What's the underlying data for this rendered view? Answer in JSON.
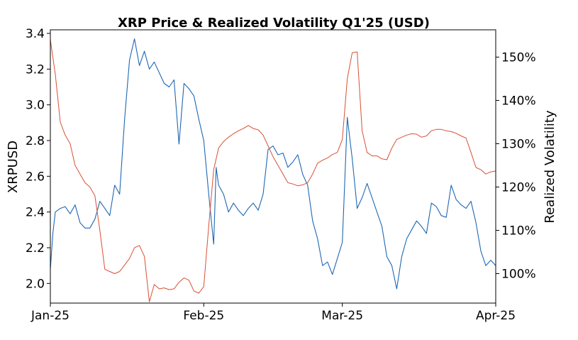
{
  "chart_data": {
    "type": "line",
    "title": "XRP Price & Realized Volatility Q1'25 (USD)",
    "xlabel": "",
    "ylabel": "XRPUSD",
    "y2label": "Realized Volatility",
    "x_ticks": [
      "Jan-25",
      "Feb-25",
      "Mar-25",
      "Apr-25"
    ],
    "x_range": [
      "2025-01-01",
      "2025-04-01"
    ],
    "ylim": [
      1.89,
      3.42
    ],
    "y_ticks": [
      "2.0",
      "2.2",
      "2.4",
      "2.6",
      "2.8",
      "3.0",
      "3.2",
      "3.4"
    ],
    "y2lim": [
      93.2,
      156.3
    ],
    "y2_ticks": [
      "100%",
      "110%",
      "120%",
      "130%",
      "140%",
      "150%"
    ],
    "grid": false,
    "series": [
      {
        "axis": "left",
        "color": "#1f67b4",
        "points": [
          [
            "2025-01-01",
            2.08
          ],
          [
            "2025-01-01T12",
            2.28
          ],
          [
            "2025-01-02",
            2.4
          ],
          [
            "2025-01-03",
            2.42
          ],
          [
            "2025-01-04",
            2.43
          ],
          [
            "2025-01-05",
            2.39
          ],
          [
            "2025-01-06",
            2.44
          ],
          [
            "2025-01-07",
            2.34
          ],
          [
            "2025-01-08",
            2.31
          ],
          [
            "2025-01-09",
            2.31
          ],
          [
            "2025-01-10",
            2.36
          ],
          [
            "2025-01-11",
            2.46
          ],
          [
            "2025-01-12",
            2.42
          ],
          [
            "2025-01-13",
            2.38
          ],
          [
            "2025-01-14",
            2.55
          ],
          [
            "2025-01-15",
            2.5
          ],
          [
            "2025-01-16",
            2.92
          ],
          [
            "2025-01-17",
            3.25
          ],
          [
            "2025-01-18",
            3.37
          ],
          [
            "2025-01-19",
            3.22
          ],
          [
            "2025-01-20",
            3.3
          ],
          [
            "2025-01-21",
            3.2
          ],
          [
            "2025-01-22",
            3.24
          ],
          [
            "2025-01-23",
            3.18
          ],
          [
            "2025-01-24",
            3.12
          ],
          [
            "2025-01-25",
            3.1
          ],
          [
            "2025-01-26",
            3.14
          ],
          [
            "2025-01-27",
            2.78
          ],
          [
            "2025-01-28",
            3.12
          ],
          [
            "2025-01-29",
            3.09
          ],
          [
            "2025-01-30",
            3.05
          ],
          [
            "2025-01-31",
            2.92
          ],
          [
            "2025-02-01",
            2.8
          ],
          [
            "2025-02-02",
            2.5
          ],
          [
            "2025-02-03",
            2.22
          ],
          [
            "2025-02-03T12",
            2.65
          ],
          [
            "2025-02-04",
            2.55
          ],
          [
            "2025-02-05",
            2.5
          ],
          [
            "2025-02-06",
            2.4
          ],
          [
            "2025-02-07",
            2.45
          ],
          [
            "2025-02-08",
            2.41
          ],
          [
            "2025-02-09",
            2.38
          ],
          [
            "2025-02-10",
            2.42
          ],
          [
            "2025-02-11",
            2.45
          ],
          [
            "2025-02-12",
            2.41
          ],
          [
            "2025-02-13",
            2.5
          ],
          [
            "2025-02-14",
            2.75
          ],
          [
            "2025-02-15",
            2.77
          ],
          [
            "2025-02-16",
            2.72
          ],
          [
            "2025-02-17",
            2.73
          ],
          [
            "2025-02-18",
            2.65
          ],
          [
            "2025-02-19",
            2.68
          ],
          [
            "2025-02-20",
            2.72
          ],
          [
            "2025-02-21",
            2.61
          ],
          [
            "2025-02-22",
            2.55
          ],
          [
            "2025-02-23",
            2.35
          ],
          [
            "2025-02-24",
            2.25
          ],
          [
            "2025-02-25",
            2.1
          ],
          [
            "2025-02-26",
            2.12
          ],
          [
            "2025-02-27",
            2.05
          ],
          [
            "2025-02-28",
            2.14
          ],
          [
            "2025-03-01",
            2.23
          ],
          [
            "2025-03-02",
            2.93
          ],
          [
            "2025-03-03",
            2.7
          ],
          [
            "2025-03-04",
            2.42
          ],
          [
            "2025-03-05",
            2.48
          ],
          [
            "2025-03-06",
            2.56
          ],
          [
            "2025-03-07",
            2.48
          ],
          [
            "2025-03-08",
            2.4
          ],
          [
            "2025-03-09",
            2.32
          ],
          [
            "2025-03-10",
            2.15
          ],
          [
            "2025-03-11",
            2.1
          ],
          [
            "2025-03-12",
            1.97
          ],
          [
            "2025-03-13",
            2.15
          ],
          [
            "2025-03-14",
            2.25
          ],
          [
            "2025-03-15",
            2.3
          ],
          [
            "2025-03-16",
            2.35
          ],
          [
            "2025-03-17",
            2.32
          ],
          [
            "2025-03-18",
            2.28
          ],
          [
            "2025-03-19",
            2.45
          ],
          [
            "2025-03-20",
            2.43
          ],
          [
            "2025-03-21",
            2.38
          ],
          [
            "2025-03-22",
            2.37
          ],
          [
            "2025-03-23",
            2.55
          ],
          [
            "2025-03-24",
            2.47
          ],
          [
            "2025-03-25",
            2.44
          ],
          [
            "2025-03-26",
            2.42
          ],
          [
            "2025-03-27",
            2.46
          ],
          [
            "2025-03-28",
            2.34
          ],
          [
            "2025-03-29",
            2.18
          ],
          [
            "2025-03-30",
            2.1
          ],
          [
            "2025-03-31",
            2.13
          ],
          [
            "2025-04-01",
            2.1
          ]
        ]
      },
      {
        "axis": "right",
        "color": "#d94f33",
        "points": [
          [
            "2025-01-01",
            154.0
          ],
          [
            "2025-01-02",
            146.0
          ],
          [
            "2025-01-03",
            135.0
          ],
          [
            "2025-01-04",
            132.0
          ],
          [
            "2025-01-05",
            130.0
          ],
          [
            "2025-01-06",
            125.0
          ],
          [
            "2025-01-07",
            123.0
          ],
          [
            "2025-01-08",
            121.0
          ],
          [
            "2025-01-09",
            120.0
          ],
          [
            "2025-01-10",
            118.0
          ],
          [
            "2025-01-11",
            110.0
          ],
          [
            "2025-01-12",
            101.0
          ],
          [
            "2025-01-13",
            100.5
          ],
          [
            "2025-01-14",
            100.0
          ],
          [
            "2025-01-15",
            100.5
          ],
          [
            "2025-01-16",
            102.0
          ],
          [
            "2025-01-17",
            103.5
          ],
          [
            "2025-01-18",
            106.0
          ],
          [
            "2025-01-19",
            106.5
          ],
          [
            "2025-01-20",
            104.0
          ],
          [
            "2025-01-21",
            93.5
          ],
          [
            "2025-01-22",
            97.5
          ],
          [
            "2025-01-23",
            96.5
          ],
          [
            "2025-01-24",
            96.7
          ],
          [
            "2025-01-25",
            96.3
          ],
          [
            "2025-01-26",
            96.5
          ],
          [
            "2025-01-27",
            98.0
          ],
          [
            "2025-01-28",
            99.0
          ],
          [
            "2025-01-29",
            98.5
          ],
          [
            "2025-01-30",
            96.0
          ],
          [
            "2025-01-31",
            95.5
          ],
          [
            "2025-02-01",
            97.0
          ],
          [
            "2025-02-02",
            111.0
          ],
          [
            "2025-02-03",
            124.0
          ],
          [
            "2025-02-04",
            129.0
          ],
          [
            "2025-02-05",
            130.5
          ],
          [
            "2025-02-06",
            131.5
          ],
          [
            "2025-02-07",
            132.3
          ],
          [
            "2025-02-08",
            133.0
          ],
          [
            "2025-02-09",
            133.5
          ],
          [
            "2025-02-10",
            134.2
          ],
          [
            "2025-02-11",
            133.5
          ],
          [
            "2025-02-12",
            133.2
          ],
          [
            "2025-02-13",
            132.0
          ],
          [
            "2025-02-14",
            129.5
          ],
          [
            "2025-02-15",
            127.0
          ],
          [
            "2025-02-16",
            125.0
          ],
          [
            "2025-02-17",
            123.0
          ],
          [
            "2025-02-18",
            121.0
          ],
          [
            "2025-02-19",
            120.7
          ],
          [
            "2025-02-20",
            120.3
          ],
          [
            "2025-02-21",
            120.5
          ],
          [
            "2025-02-22",
            121.0
          ],
          [
            "2025-02-23",
            123.0
          ],
          [
            "2025-02-24",
            125.5
          ],
          [
            "2025-02-25",
            126.2
          ],
          [
            "2025-02-26",
            126.7
          ],
          [
            "2025-02-27",
            127.5
          ],
          [
            "2025-02-28",
            128.0
          ],
          [
            "2025-03-01",
            131.0
          ],
          [
            "2025-03-02",
            145.0
          ],
          [
            "2025-03-03",
            151.0
          ],
          [
            "2025-03-04",
            151.2
          ],
          [
            "2025-03-05",
            133.0
          ],
          [
            "2025-03-06",
            128.0
          ],
          [
            "2025-03-07",
            127.2
          ],
          [
            "2025-03-08",
            127.2
          ],
          [
            "2025-03-09",
            126.5
          ],
          [
            "2025-03-10",
            126.3
          ],
          [
            "2025-03-11",
            129.0
          ],
          [
            "2025-03-12",
            131.0
          ],
          [
            "2025-03-13",
            131.5
          ],
          [
            "2025-03-14",
            132.0
          ],
          [
            "2025-03-15",
            132.3
          ],
          [
            "2025-03-16",
            132.2
          ],
          [
            "2025-03-17",
            131.5
          ],
          [
            "2025-03-18",
            131.8
          ],
          [
            "2025-03-19",
            133.0
          ],
          [
            "2025-03-20",
            133.3
          ],
          [
            "2025-03-21",
            133.3
          ],
          [
            "2025-03-22",
            133.0
          ],
          [
            "2025-03-23",
            132.8
          ],
          [
            "2025-03-24",
            132.4
          ],
          [
            "2025-03-25",
            131.8
          ],
          [
            "2025-03-26",
            131.3
          ],
          [
            "2025-03-27",
            128.0
          ],
          [
            "2025-03-28",
            124.5
          ],
          [
            "2025-03-29",
            124.0
          ],
          [
            "2025-03-30",
            123.0
          ],
          [
            "2025-03-31",
            123.5
          ],
          [
            "2025-04-01",
            123.7
          ]
        ]
      }
    ]
  }
}
